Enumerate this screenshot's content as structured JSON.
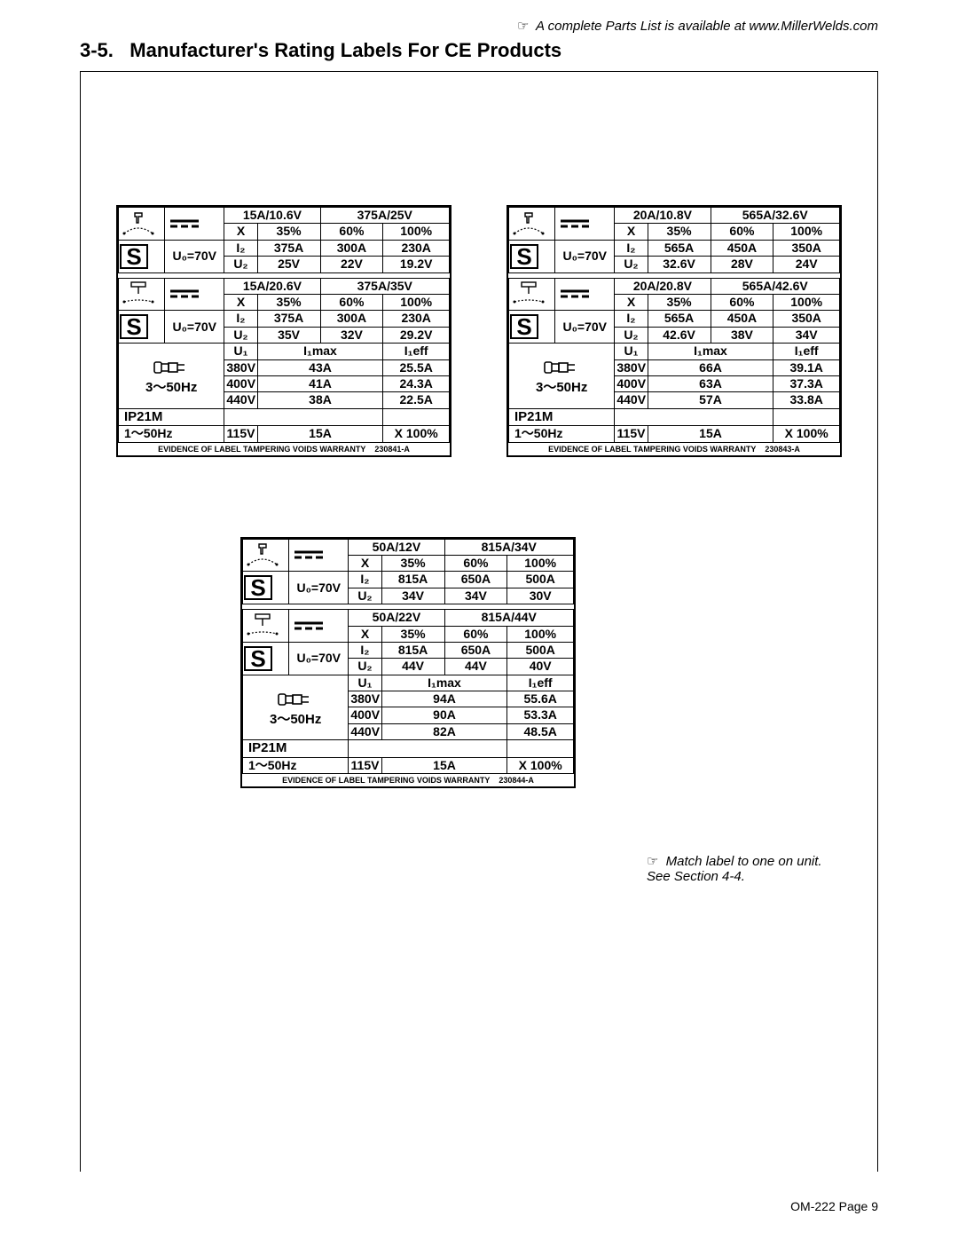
{
  "header_note_prefix": "☞",
  "header_note": "A complete Parts List is available at www.MillerWelds.com",
  "section_number": "3-5.",
  "section_title": "Manufacturer's Rating Labels For CE Products",
  "match_note_prefix": "☞",
  "match_note": "Match label to one on unit. See Section 4-4.",
  "footer": "OM-222 Page 9",
  "tamper_text": "EVIDENCE OF LABEL TAMPERING VOIDS WARRANTY",
  "u0_label": "U₀=70V",
  "ip_label": "IP21M",
  "three_phase": "3〜50Hz",
  "one_phase": "1〜50Hz",
  "u1_label": "U₁",
  "imax_label": "I₁max",
  "ieff_label": "I₁eff",
  "i2_label": "I₂",
  "u2_label": "U₂",
  "x_label": "X",
  "aux_115v": "115V",
  "aux_15a": "15A",
  "aux_x100": "X 100%",
  "labels": [
    {
      "blocks": [
        {
          "range_lo": "15A/10.6V",
          "range_hi": "375A/25V",
          "duty": [
            "35%",
            "60%",
            "100%"
          ],
          "i2": [
            "375A",
            "300A",
            "230A"
          ],
          "u2": [
            "25V",
            "22V",
            "19.2V"
          ]
        },
        {
          "range_lo": "15A/20.6V",
          "range_hi": "375A/35V",
          "duty": [
            "35%",
            "60%",
            "100%"
          ],
          "i2": [
            "375A",
            "300A",
            "230A"
          ],
          "u2": [
            "35V",
            "32V",
            "29.2V"
          ]
        }
      ],
      "supply": [
        {
          "u1": "380V",
          "imax": "43A",
          "ieff": "25.5A"
        },
        {
          "u1": "400V",
          "imax": "41A",
          "ieff": "24.3A"
        },
        {
          "u1": "440V",
          "imax": "38A",
          "ieff": "22.5A"
        }
      ],
      "part_no": "230841-A"
    },
    {
      "blocks": [
        {
          "range_lo": "20A/10.8V",
          "range_hi": "565A/32.6V",
          "duty": [
            "35%",
            "60%",
            "100%"
          ],
          "i2": [
            "565A",
            "450A",
            "350A"
          ],
          "u2": [
            "32.6V",
            "28V",
            "24V"
          ]
        },
        {
          "range_lo": "20A/20.8V",
          "range_hi": "565A/42.6V",
          "duty": [
            "35%",
            "60%",
            "100%"
          ],
          "i2": [
            "565A",
            "450A",
            "350A"
          ],
          "u2": [
            "42.6V",
            "38V",
            "34V"
          ]
        }
      ],
      "supply": [
        {
          "u1": "380V",
          "imax": "66A",
          "ieff": "39.1A"
        },
        {
          "u1": "400V",
          "imax": "63A",
          "ieff": "37.3A"
        },
        {
          "u1": "440V",
          "imax": "57A",
          "ieff": "33.8A"
        }
      ],
      "part_no": "230843-A"
    },
    {
      "blocks": [
        {
          "range_lo": "50A/12V",
          "range_hi": "815A/34V",
          "duty": [
            "35%",
            "60%",
            "100%"
          ],
          "i2": [
            "815A",
            "650A",
            "500A"
          ],
          "u2": [
            "34V",
            "34V",
            "30V"
          ]
        },
        {
          "range_lo": "50A/22V",
          "range_hi": "815A/44V",
          "duty": [
            "35%",
            "60%",
            "100%"
          ],
          "i2": [
            "815A",
            "650A",
            "500A"
          ],
          "u2": [
            "44V",
            "44V",
            "40V"
          ]
        }
      ],
      "supply": [
        {
          "u1": "380V",
          "imax": "94A",
          "ieff": "55.6A"
        },
        {
          "u1": "400V",
          "imax": "90A",
          "ieff": "53.3A"
        },
        {
          "u1": "440V",
          "imax": "82A",
          "ieff": "48.5A"
        }
      ],
      "part_no": "230844-A"
    }
  ]
}
